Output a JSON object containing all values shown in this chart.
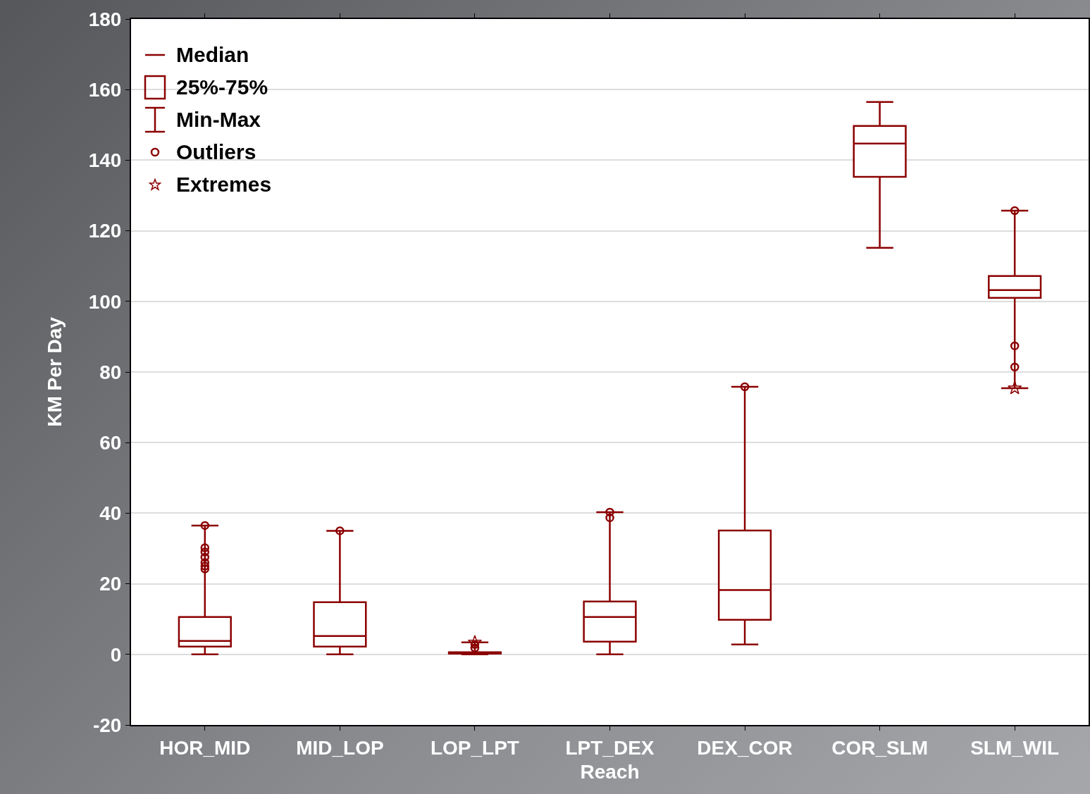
{
  "chart_data": {
    "type": "box",
    "xlabel": "Reach",
    "ylabel": "KM Per Day",
    "categories": [
      "HOR_MID",
      "MID_LOP",
      "LOP_LPT",
      "LPT_DEX",
      "DEX_COR",
      "COR_SLM",
      "SLM_WIL"
    ],
    "series": [
      {
        "type": "box",
        "color": "#8b0000",
        "boxes": [
          {
            "low": 0,
            "q1": 2.2,
            "median": 3.8,
            "q3": 10.6,
            "high": 36.5,
            "outliers": [
              36.5,
              30.2,
              29,
              27.5,
              26,
              25,
              24.2
            ]
          },
          {
            "low": 0,
            "q1": 2.2,
            "median": 5.2,
            "q3": 14.8,
            "high": 35,
            "outliers": [
              35
            ]
          },
          {
            "low": 0,
            "q1": 0.2,
            "median": 0.4,
            "q3": 0.6,
            "high": 3.4,
            "outliers": [
              2.8,
              1.8
            ]
          },
          {
            "low": 0,
            "q1": 3.6,
            "median": 10.6,
            "q3": 15,
            "high": 40.3,
            "outliers": [
              40.3,
              38.7
            ]
          },
          {
            "low": 2.8,
            "q1": 9.8,
            "median": 18.2,
            "q3": 35.1,
            "high": 75.8,
            "outliers": [
              75.8
            ]
          },
          {
            "low": 115.2,
            "q1": 135.3,
            "median": 144.7,
            "q3": 149.7,
            "high": 156.5
          },
          {
            "low": 75.4,
            "q1": 101,
            "median": 103.2,
            "q3": 107.2,
            "high": 125.7,
            "outliers": [
              125.7,
              87.4,
              81.4
            ]
          }
        ]
      },
      {
        "name": "Extremes",
        "type": "scatter",
        "marker": "star",
        "color": "#8b0000",
        "x": [
          "LOP_LPT",
          "SLM_WIL"
        ],
        "values": [
          3.4,
          75.4
        ]
      }
    ],
    "annotations": [
      "Median",
      "25%-75%",
      "Min-Max",
      "Outliers"
    ],
    "ylim": [
      -20,
      180
    ],
    "yticks": [
      -20,
      0,
      20,
      40,
      60,
      80,
      100,
      120,
      140,
      160,
      180
    ],
    "grid": "y",
    "legend": "top left"
  }
}
